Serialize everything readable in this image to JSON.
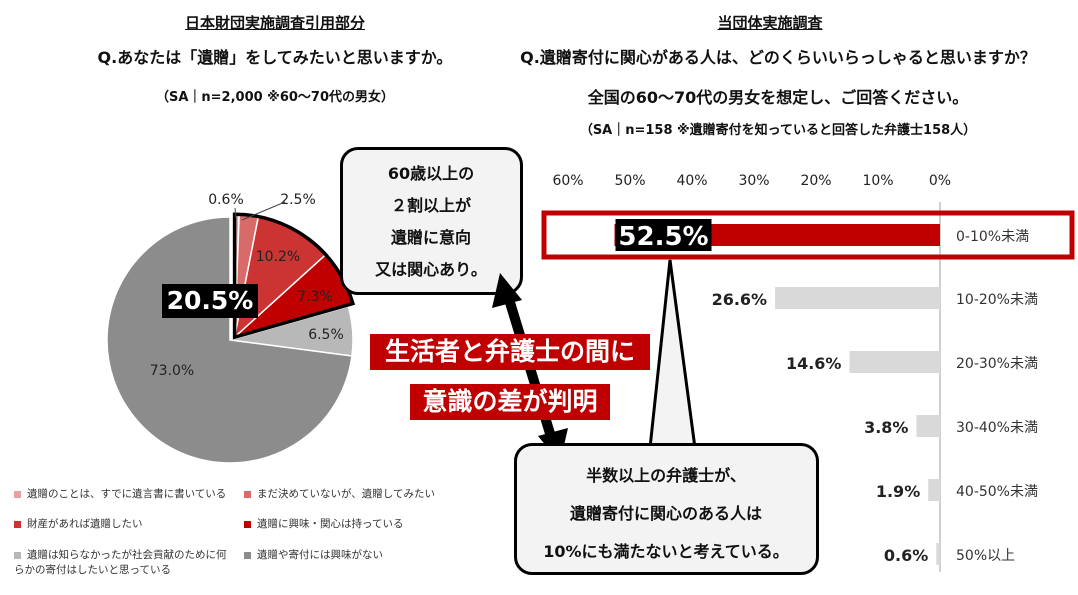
{
  "left": {
    "source_label": "日本財団実施調査引用部分",
    "question": "Q.あなたは「遺贈」をしてみたいと思いますか。",
    "note": "（SA｜n=2,000 ※60～70代の男女）",
    "highlight_total": "20.5%"
  },
  "right": {
    "source_label": "当団体実施調査",
    "question": "Q.遺贈寄付に関心がある人は、どのくらいいらっしゃると思いますか？",
    "question2": "全国の60～70代の男女を想定し、ご回答ください。",
    "note": "（SA｜n=158 ※遺贈寄付を知っていると回答した弁護士158人）"
  },
  "callout_top": {
    "line1": "60歳以上の",
    "line2": "２割以上が",
    "line3": "遺贈に意向",
    "line4": "又は関心あり。"
  },
  "callout_bottom": {
    "line1": "半数以上の弁護士が、",
    "line2": "遺贈寄付に関心のある人は",
    "line3": "10%にも満たないと考えている。"
  },
  "banner": {
    "line1": "生活者と弁護士の間に",
    "line2": "意識の差が判明"
  },
  "chart_data": [
    {
      "type": "pie",
      "slices": [
        {
          "label": "遺贈のことは、すでに遺言書に書いている",
          "value": 0.6,
          "value_label": "0.6%",
          "color": "#e8a0a0"
        },
        {
          "label": "まだ決めていないが、遺贈してみたい",
          "value": 2.5,
          "value_label": "2.5%",
          "color": "#d96a6a"
        },
        {
          "label": "財産があれば遺贈したい",
          "value": 10.2,
          "value_label": "10.2%",
          "color": "#cc3333"
        },
        {
          "label": "遺贈に興味・関心は持っている",
          "value": 7.3,
          "value_label": "7.3%",
          "color": "#c00000"
        },
        {
          "label": "遺贈は知らなかったが社会貢献のために何らかの寄付はしたいと思っている",
          "value": 6.5,
          "value_label": "6.5%",
          "color": "#b8b8b8"
        },
        {
          "label": "遺贈や寄付には興味がない",
          "value": 73.0,
          "value_label": "73.0%",
          "color": "#8c8c8c"
        }
      ]
    },
    {
      "type": "bar",
      "orientation": "horizontal",
      "axis_ticks": [
        "60%",
        "50%",
        "40%",
        "30%",
        "20%",
        "10%",
        "0%"
      ],
      "xlim": [
        0,
        60
      ],
      "categories": [
        "0-10%未満",
        "10-20%未満",
        "20-30%未満",
        "30-40%未満",
        "40-50%未満",
        "50%以上"
      ],
      "values": [
        52.5,
        26.6,
        14.6,
        3.8,
        1.9,
        0.6
      ],
      "value_labels": [
        "52.5%",
        "26.6%",
        "14.6%",
        "3.8%",
        "1.9%",
        "0.6%"
      ],
      "colors": [
        "#c00000",
        "#d9d9d9",
        "#d9d9d9",
        "#d9d9d9",
        "#d9d9d9",
        "#d9d9d9"
      ]
    }
  ]
}
